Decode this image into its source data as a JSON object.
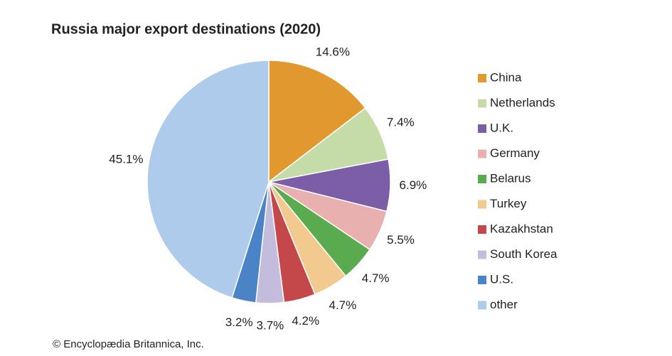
{
  "chart_data": {
    "type": "pie",
    "title": "Russia major export destinations (2020)",
    "categories": [
      "China",
      "Netherlands",
      "U.K.",
      "Germany",
      "Belarus",
      "Turkey",
      "Kazakhstan",
      "South Korea",
      "U.S.",
      "other"
    ],
    "values": [
      14.6,
      7.4,
      6.9,
      5.5,
      4.7,
      4.7,
      4.2,
      3.7,
      3.2,
      45.1
    ],
    "value_labels": [
      "14.6%",
      "7.4%",
      "6.9%",
      "5.5%",
      "4.7%",
      "4.7%",
      "4.2%",
      "3.7%",
      "3.2%",
      "45.1%"
    ],
    "colors": [
      "#e0982f",
      "#c5dca8",
      "#7b5ea7",
      "#e8b0ae",
      "#5aab4f",
      "#f2c98f",
      "#c4474a",
      "#c4bcdc",
      "#4b84c6",
      "#aecbec"
    ],
    "legend": "right",
    "source": "© Encyclopædia Britannica, Inc."
  }
}
